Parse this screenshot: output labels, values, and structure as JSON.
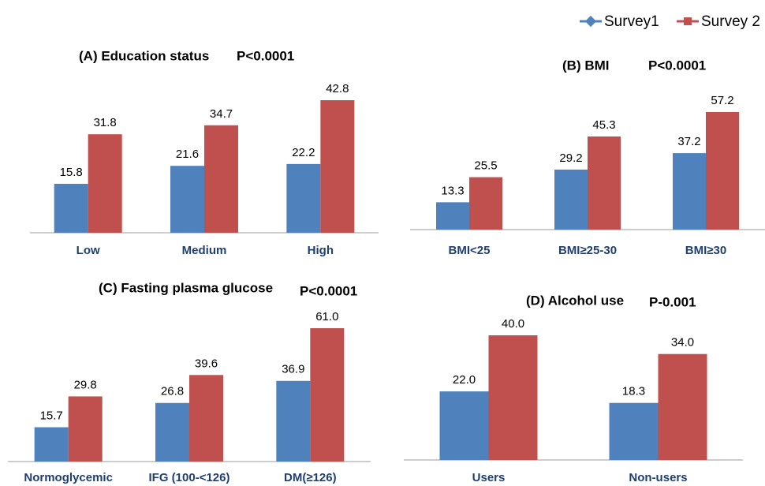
{
  "chart_data": [
    {
      "type": "bar",
      "title": "(A) Education status",
      "annotation": "P<0.0001",
      "categories": [
        "Low",
        "Medium",
        "High"
      ],
      "series": [
        {
          "name": "Survey1",
          "color": "#4f81bd",
          "values": [
            15.8,
            21.6,
            22.2
          ],
          "value_labels": [
            "15.8",
            "21.6",
            "22.2"
          ]
        },
        {
          "name": "Survey 2",
          "color": "#c0504d",
          "values": [
            31.8,
            34.7,
            42.8
          ],
          "value_labels": [
            "31.8",
            "34.7",
            "42.8"
          ]
        }
      ]
    },
    {
      "type": "bar",
      "title": "(B) BMI",
      "annotation": "P<0.0001",
      "categories": [
        "BMI<25",
        "BMI≥25-30",
        "BMI≥30"
      ],
      "series": [
        {
          "name": "Survey1",
          "color": "#4f81bd",
          "values": [
            13.3,
            29.2,
            37.2
          ],
          "value_labels": [
            "13.3",
            "29.2",
            "37.2"
          ]
        },
        {
          "name": "Survey 2",
          "color": "#c0504d",
          "values": [
            25.5,
            45.3,
            57.2
          ],
          "value_labels": [
            "25.5",
            "45.3",
            "57.2"
          ]
        }
      ]
    },
    {
      "type": "bar",
      "title": "(C) Fasting plasma glucose",
      "annotation": "P<0.0001",
      "categories": [
        "Normoglycemic",
        "IFG (100-<126)",
        "DM(≥126)"
      ],
      "series": [
        {
          "name": "Survey1",
          "color": "#4f81bd",
          "values": [
            15.7,
            26.8,
            36.9
          ],
          "value_labels": [
            "15.7",
            "26.8",
            "36.9"
          ]
        },
        {
          "name": "Survey 2",
          "color": "#c0504d",
          "values": [
            29.8,
            39.6,
            61.0
          ],
          "value_labels": [
            "29.8",
            "39.6",
            "61.0"
          ]
        }
      ]
    },
    {
      "type": "bar",
      "title": "(D) Alcohol use",
      "annotation": "P-0.001",
      "categories": [
        "Users",
        "Non-users"
      ],
      "series": [
        {
          "name": "Survey1",
          "color": "#4f81bd",
          "values": [
            22.0,
            18.3
          ],
          "value_labels": [
            "22.0",
            "18.3"
          ]
        },
        {
          "name": "Survey 2",
          "color": "#c0504d",
          "values": [
            40.0,
            34.0
          ],
          "value_labels": [
            "40.0",
            "34.0"
          ]
        }
      ]
    }
  ]
}
